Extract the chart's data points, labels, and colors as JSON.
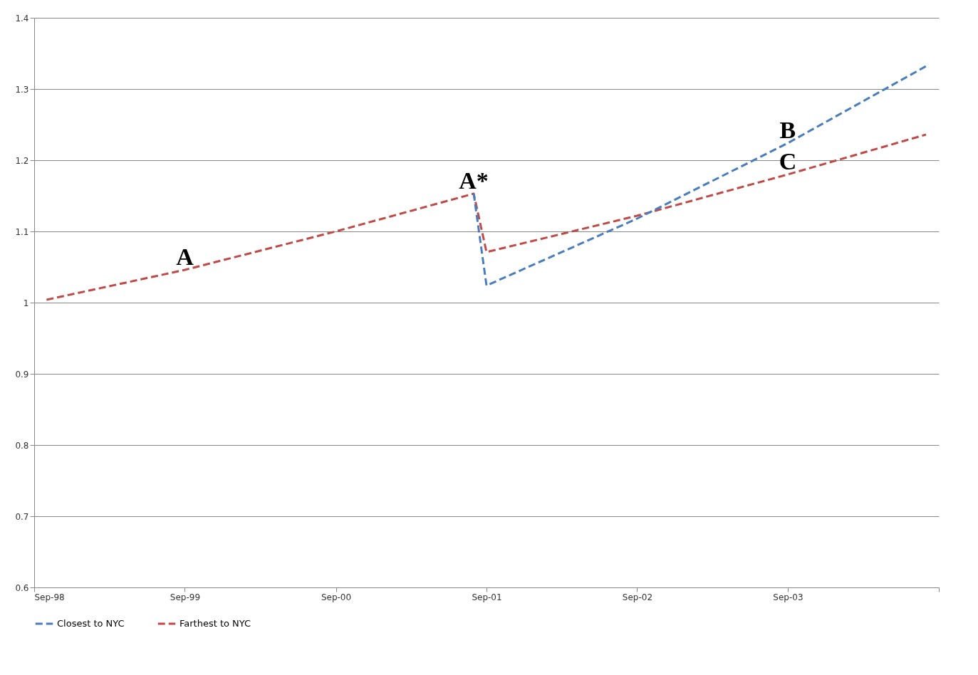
{
  "chart_data": {
    "type": "line",
    "series": [
      {
        "name": "Closest to NYC",
        "color": "#4a7ebb",
        "line_style": "dashed",
        "x": [
          "2001-08",
          "2001-09",
          "2002-09",
          "2003-09",
          "2004-08"
        ],
        "values": [
          1.153,
          1.024,
          1.118,
          1.224,
          1.332
        ]
      },
      {
        "name": "Farthest to NYC",
        "color": "#be4b48",
        "line_style": "dashed",
        "x": [
          "1998-10",
          "1999-09",
          "2000-09",
          "2001-08",
          "2001-09",
          "2002-09",
          "2003-09",
          "2004-08"
        ],
        "values": [
          1.004,
          1.046,
          1.1,
          1.153,
          1.071,
          1.122,
          1.18,
          1.236
        ]
      }
    ],
    "xlim": [
      "1998-09",
      "2004-09"
    ],
    "xticks": [
      {
        "value": "1998-09",
        "label": "Sep-98"
      },
      {
        "value": "1999-09",
        "label": "Sep-99"
      },
      {
        "value": "2000-09",
        "label": "Sep-00"
      },
      {
        "value": "2001-09",
        "label": "Sep-01"
      },
      {
        "value": "2002-09",
        "label": "Sep-02"
      },
      {
        "value": "2003-09",
        "label": "Sep-03"
      },
      {
        "value": "2004-09",
        "label": null
      }
    ],
    "ylim": [
      0.6,
      1.4
    ],
    "yticks": [
      0.6,
      0.7,
      0.8,
      0.9,
      1,
      1.1,
      1.2,
      1.3,
      1.4
    ],
    "grid": "y",
    "legend": "bottom",
    "marker": "none",
    "annotations": [
      {
        "text": "A",
        "x": "1999-09",
        "y": 1.046
      },
      {
        "text": "A*",
        "x": "2001-08",
        "y": 1.153
      },
      {
        "text": "B",
        "x": "2003-09",
        "y": 1.224
      },
      {
        "text": "C",
        "x": "2003-09",
        "y": 1.18
      }
    ]
  }
}
